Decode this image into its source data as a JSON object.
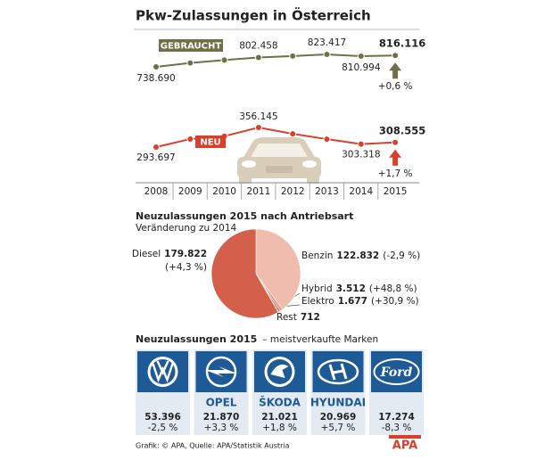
{
  "title": "Pkw-Zulassungen in Österreich",
  "chart_data": [
    {
      "type": "line",
      "categories": [
        "2008",
        "2009",
        "2010",
        "2011",
        "2012",
        "2013",
        "2014",
        "2015"
      ],
      "series": [
        {
          "name": "GEBRAUCHT",
          "color": "#6f7047",
          "values": [
            738690,
            765000,
            785000,
            802458,
            812000,
            823417,
            810994,
            816116
          ],
          "value_labels": [
            "738.690",
            null,
            null,
            "802.458",
            null,
            "823.417",
            "810.994",
            "816.116"
          ],
          "change": "+0,6 %"
        },
        {
          "name": "NEU",
          "color": "#d9402b",
          "values": [
            293697,
            319403,
            328563,
            356145,
            336010,
            319035,
            303318,
            308555
          ],
          "value_labels": [
            "293.697",
            null,
            null,
            "356.145",
            null,
            null,
            "303.318",
            "308.555"
          ],
          "change": "+1,7 %"
        }
      ]
    },
    {
      "type": "pie",
      "title": "Neuzulassungen 2015 nach Antriebsart",
      "subtitle": "Veränderung zu 2014",
      "categories": [
        "Diesel",
        "Benzin",
        "Hybrid",
        "Elektro",
        "Rest"
      ],
      "values": [
        179822,
        122832,
        3512,
        1677,
        712
      ],
      "value_labels": [
        "179.822",
        "122.832",
        "3.512",
        "1.677",
        "712"
      ],
      "changes": [
        "(+4,3 %)",
        "(-2,9 %)",
        "(+48,8 %)",
        "(+30,9 %)",
        null
      ],
      "colors": [
        "#d4604c",
        "#efbcae",
        "#e79a86",
        "#c0392b",
        "#f6d8cf"
      ]
    },
    {
      "type": "cards",
      "title": "Neuzulassungen 2015",
      "subtitle": "– meistverkaufte Marken",
      "categories": [
        null,
        "OPEL",
        "ŠKODA",
        "HYUNDAI",
        "Ford"
      ],
      "values": [
        53396,
        21870,
        21021,
        20969,
        17274
      ],
      "value_labels": [
        "53.396",
        "21.870",
        "21.021",
        "20.969",
        "17.274"
      ],
      "changes": [
        "-2,5 %",
        "+3,3 %",
        "+1,8 %",
        "+5,7 %",
        "-8,3 %"
      ]
    }
  ],
  "source": "Grafik: © APA, Quelle: APA/Statistik Austria",
  "logo": "APA"
}
